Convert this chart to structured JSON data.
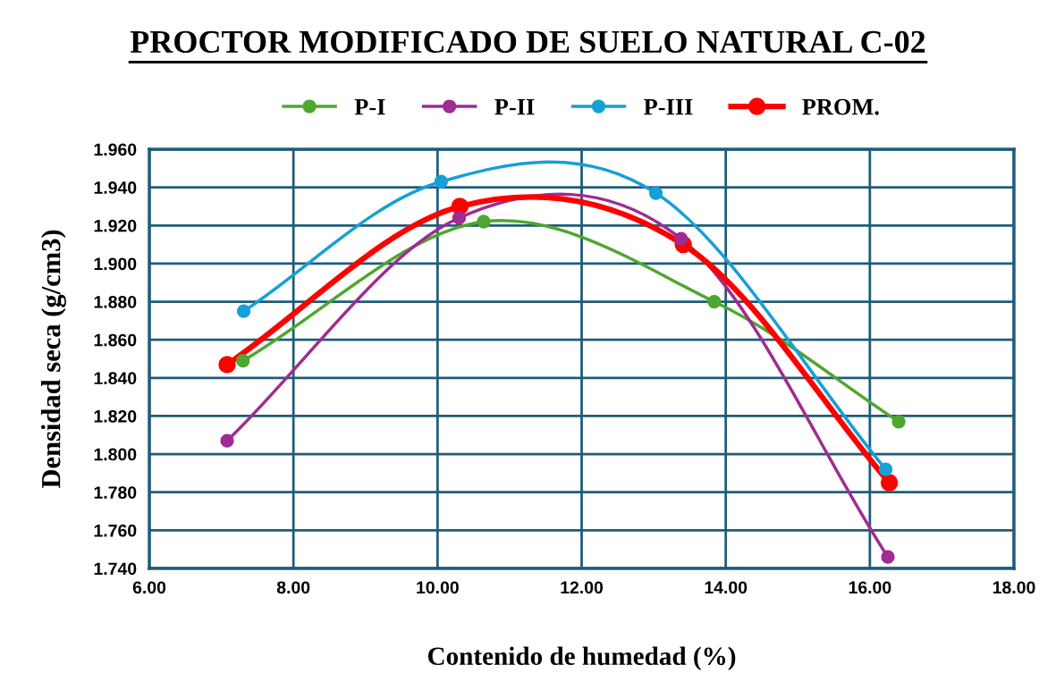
{
  "chart_data": {
    "type": "line",
    "title": "PROCTOR MODIFICADO DE SUELO NATURAL C-02",
    "xlabel": "Contenido de humedad (%)",
    "ylabel": "Densidad seca (g/cm3)",
    "series": [
      {
        "name": "P-I",
        "color": "#4ea72e",
        "x": [
          7.3,
          10.64,
          13.84,
          16.4
        ],
        "values": [
          1.849,
          1.922,
          1.88,
          1.817
        ]
      },
      {
        "name": "P-II",
        "color": "#a02b93",
        "x": [
          7.08,
          10.3,
          13.38,
          16.25
        ],
        "values": [
          1.807,
          1.924,
          1.913,
          1.746
        ]
      },
      {
        "name": "P-III",
        "color": "#15a0d6",
        "x": [
          7.31,
          10.05,
          13.03,
          16.22
        ],
        "values": [
          1.875,
          1.943,
          1.937,
          1.792
        ]
      },
      {
        "name": "PROM.",
        "color": "#ff0000",
        "x": [
          7.08,
          10.31,
          13.41,
          16.27
        ],
        "values": [
          1.847,
          1.93,
          1.91,
          1.785
        ]
      }
    ],
    "xlim": [
      6,
      18
    ],
    "xticks": [
      {
        "value": 6,
        "label": "6.00"
      },
      {
        "value": 8,
        "label": "8.00"
      },
      {
        "value": 10,
        "label": "10.00"
      },
      {
        "value": 12,
        "label": "12.00"
      },
      {
        "value": 14,
        "label": "14.00"
      },
      {
        "value": 16,
        "label": "16.00"
      },
      {
        "value": 18,
        "label": "18.00"
      }
    ],
    "ylim": [
      1.74,
      1.96
    ],
    "yticks": [
      {
        "value": 1.74,
        "label": "1.740"
      },
      {
        "value": 1.76,
        "label": "1.760"
      },
      {
        "value": 1.78,
        "label": "1.780"
      },
      {
        "value": 1.8,
        "label": "1.800"
      },
      {
        "value": 1.82,
        "label": "1.820"
      },
      {
        "value": 1.84,
        "label": "1.840"
      },
      {
        "value": 1.86,
        "label": "1.860"
      },
      {
        "value": 1.88,
        "label": "1.880"
      },
      {
        "value": 1.9,
        "label": "1.900"
      },
      {
        "value": 1.92,
        "label": "1.920"
      },
      {
        "value": 1.94,
        "label": "1.940"
      },
      {
        "value": 1.96,
        "label": "1.960"
      }
    ],
    "grid": true,
    "legend": "top",
    "marker": "circle",
    "line_style": "solid"
  }
}
